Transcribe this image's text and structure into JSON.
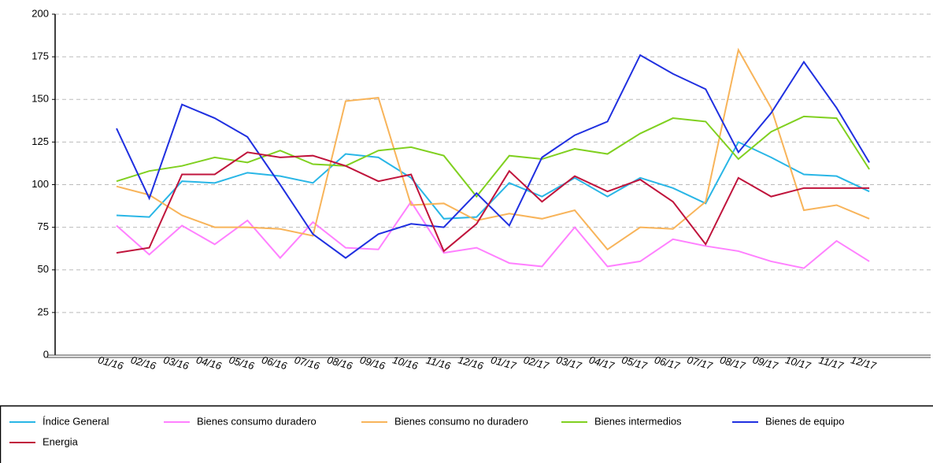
{
  "chart_data": {
    "type": "line",
    "categories": [
      "01/16",
      "02/16",
      "03/16",
      "04/16",
      "05/16",
      "06/16",
      "07/16",
      "08/16",
      "09/16",
      "10/16",
      "11/16",
      "12/16",
      "01/17",
      "02/17",
      "03/17",
      "04/17",
      "05/17",
      "06/17",
      "07/17",
      "08/17",
      "09/17",
      "10/17",
      "11/17",
      "12/17"
    ],
    "series": [
      {
        "name": "Índice General",
        "color": "#29b6e6",
        "values": [
          82,
          81,
          102,
          101,
          107,
          105,
          101,
          118,
          116,
          104,
          80,
          81,
          101,
          93,
          104,
          93,
          104,
          98,
          89,
          125,
          116,
          106,
          105,
          96
        ]
      },
      {
        "name": "Bienes consumo duradero",
        "color": "#ff80ff",
        "values": [
          76,
          59,
          76,
          65,
          79,
          57,
          78,
          63,
          62,
          90,
          60,
          63,
          54,
          52,
          75,
          52,
          55,
          68,
          64,
          61,
          55,
          51,
          67,
          55
        ]
      },
      {
        "name": "Bienes consumo no duradero",
        "color": "#f8b45a",
        "values": [
          99,
          94,
          82,
          75,
          75,
          74,
          70,
          149,
          151,
          88,
          89,
          79,
          83,
          80,
          85,
          62,
          75,
          74,
          90,
          179,
          145,
          85,
          88,
          80
        ]
      },
      {
        "name": "Bienes intermedios",
        "color": "#80d020",
        "values": [
          102,
          108,
          111,
          116,
          113,
          120,
          112,
          111,
          120,
          122,
          117,
          93,
          117,
          115,
          121,
          118,
          130,
          139,
          137,
          115,
          131,
          140,
          139,
          109
        ]
      },
      {
        "name": "Bienes de equipo",
        "color": "#2030e0",
        "values": [
          133,
          92,
          147,
          139,
          128,
          100,
          71,
          57,
          71,
          77,
          75,
          95,
          76,
          116,
          129,
          137,
          176,
          165,
          156,
          119,
          142,
          172,
          145,
          113
        ]
      },
      {
        "name": "Energia",
        "color": "#c0143c",
        "values": [
          60,
          63,
          106,
          106,
          119,
          116,
          117,
          111,
          102,
          106,
          61,
          77,
          108,
          90,
          105,
          96,
          103,
          90,
          65,
          104,
          93,
          98,
          98,
          98
        ]
      }
    ],
    "ylim": [
      0,
      200
    ],
    "yticks": [
      0,
      25,
      50,
      75,
      100,
      125,
      150,
      175,
      200
    ],
    "grid": true,
    "legend": "bottom"
  }
}
